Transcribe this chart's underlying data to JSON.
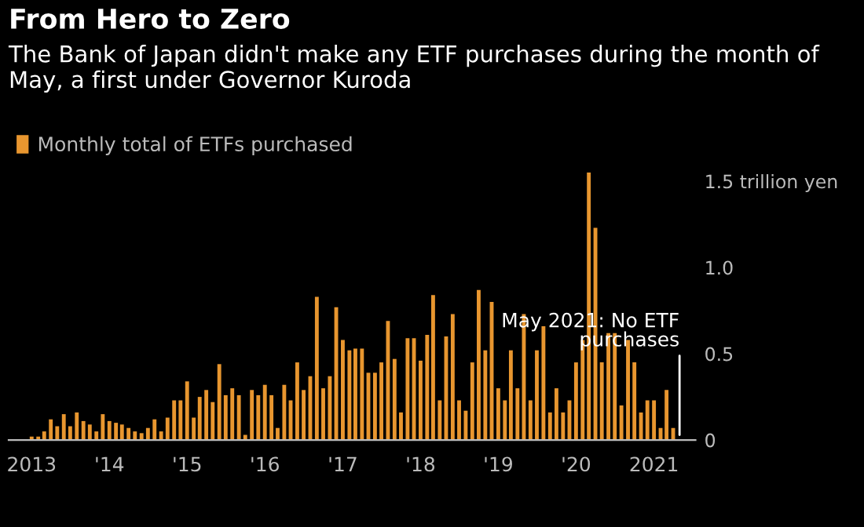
{
  "chart_data": {
    "type": "bar",
    "title": "From Hero to Zero",
    "subtitle": "The Bank of Japan didn't make any ETF purchases during the month of May, a first under Governor Kuroda",
    "x": [
      "2013-01",
      "2013-02",
      "2013-03",
      "2013-04",
      "2013-05",
      "2013-06",
      "2013-07",
      "2013-08",
      "2013-09",
      "2013-10",
      "2013-11",
      "2013-12",
      "2014-01",
      "2014-02",
      "2014-03",
      "2014-04",
      "2014-05",
      "2014-06",
      "2014-07",
      "2014-08",
      "2014-09",
      "2014-10",
      "2014-11",
      "2014-12",
      "2015-01",
      "2015-02",
      "2015-03",
      "2015-04",
      "2015-05",
      "2015-06",
      "2015-07",
      "2015-08",
      "2015-09",
      "2015-10",
      "2015-11",
      "2015-12",
      "2016-01",
      "2016-02",
      "2016-03",
      "2016-04",
      "2016-05",
      "2016-06",
      "2016-07",
      "2016-08",
      "2016-09",
      "2016-10",
      "2016-11",
      "2016-12",
      "2017-01",
      "2017-02",
      "2017-03",
      "2017-04",
      "2017-05",
      "2017-06",
      "2017-07",
      "2017-08",
      "2017-09",
      "2017-10",
      "2017-11",
      "2017-12",
      "2018-01",
      "2018-02",
      "2018-03",
      "2018-04",
      "2018-05",
      "2018-06",
      "2018-07",
      "2018-08",
      "2018-09",
      "2018-10",
      "2018-11",
      "2018-12",
      "2019-01",
      "2019-02",
      "2019-03",
      "2019-04",
      "2019-05",
      "2019-06",
      "2019-07",
      "2019-08",
      "2019-09",
      "2019-10",
      "2019-11",
      "2019-12",
      "2020-01",
      "2020-02",
      "2020-03",
      "2020-04",
      "2020-05",
      "2020-06",
      "2020-07",
      "2020-08",
      "2020-09",
      "2020-10",
      "2020-11",
      "2020-12",
      "2021-01",
      "2021-02",
      "2021-03",
      "2021-04",
      "2021-05"
    ],
    "series": [
      {
        "name": "Monthly total of ETFs purchased",
        "color": "#e8962f",
        "values": [
          0.02,
          0.02,
          0.05,
          0.12,
          0.08,
          0.15,
          0.08,
          0.16,
          0.11,
          0.09,
          0.05,
          0.15,
          0.11,
          0.1,
          0.09,
          0.07,
          0.05,
          0.04,
          0.07,
          0.12,
          0.05,
          0.13,
          0.23,
          0.23,
          0.34,
          0.13,
          0.25,
          0.29,
          0.22,
          0.44,
          0.26,
          0.3,
          0.26,
          0.03,
          0.29,
          0.26,
          0.32,
          0.26,
          0.07,
          0.32,
          0.23,
          0.45,
          0.29,
          0.37,
          0.83,
          0.3,
          0.37,
          0.77,
          0.58,
          0.52,
          0.53,
          0.53,
          0.39,
          0.39,
          0.45,
          0.69,
          0.47,
          0.16,
          0.59,
          0.59,
          0.46,
          0.61,
          0.84,
          0.23,
          0.6,
          0.73,
          0.23,
          0.17,
          0.45,
          0.87,
          0.52,
          0.8,
          0.3,
          0.23,
          0.52,
          0.3,
          0.73,
          0.23,
          0.52,
          0.66,
          0.16,
          0.3,
          0.16,
          0.23,
          0.45,
          0.58,
          1.55,
          1.23,
          0.45,
          0.62,
          0.62,
          0.2,
          0.58,
          0.45,
          0.16,
          0.23,
          0.23,
          0.07,
          0.29,
          0.07,
          0
        ]
      }
    ],
    "xlim": [
      "2012-09-15",
      "2021-07-15"
    ],
    "xticks": [
      {
        "value": "2013-01-01",
        "label": "2013"
      },
      {
        "value": "2014-01-01",
        "label": "'14"
      },
      {
        "value": "2015-01-01",
        "label": "'15"
      },
      {
        "value": "2016-01-01",
        "label": "'16"
      },
      {
        "value": "2017-01-01",
        "label": "'17"
      },
      {
        "value": "2018-01-01",
        "label": "'18"
      },
      {
        "value": "2019-01-01",
        "label": "'19"
      },
      {
        "value": "2020-01-01",
        "label": "'20"
      },
      {
        "value": "2021-01-01",
        "label": "2021"
      }
    ],
    "ylim": [
      0,
      2.55
    ],
    "yticks": [
      0,
      0.5,
      {
        "value": 1,
        "label": "1.0"
      },
      {
        "value": 1.5,
        "label": "1.5 trillion yen"
      }
    ],
    "annotations": [
      {
        "text": "May 2021: No ETF purchases",
        "x": "2021-05",
        "y": 0
      }
    ],
    "legend": "top left",
    "grid": false
  }
}
